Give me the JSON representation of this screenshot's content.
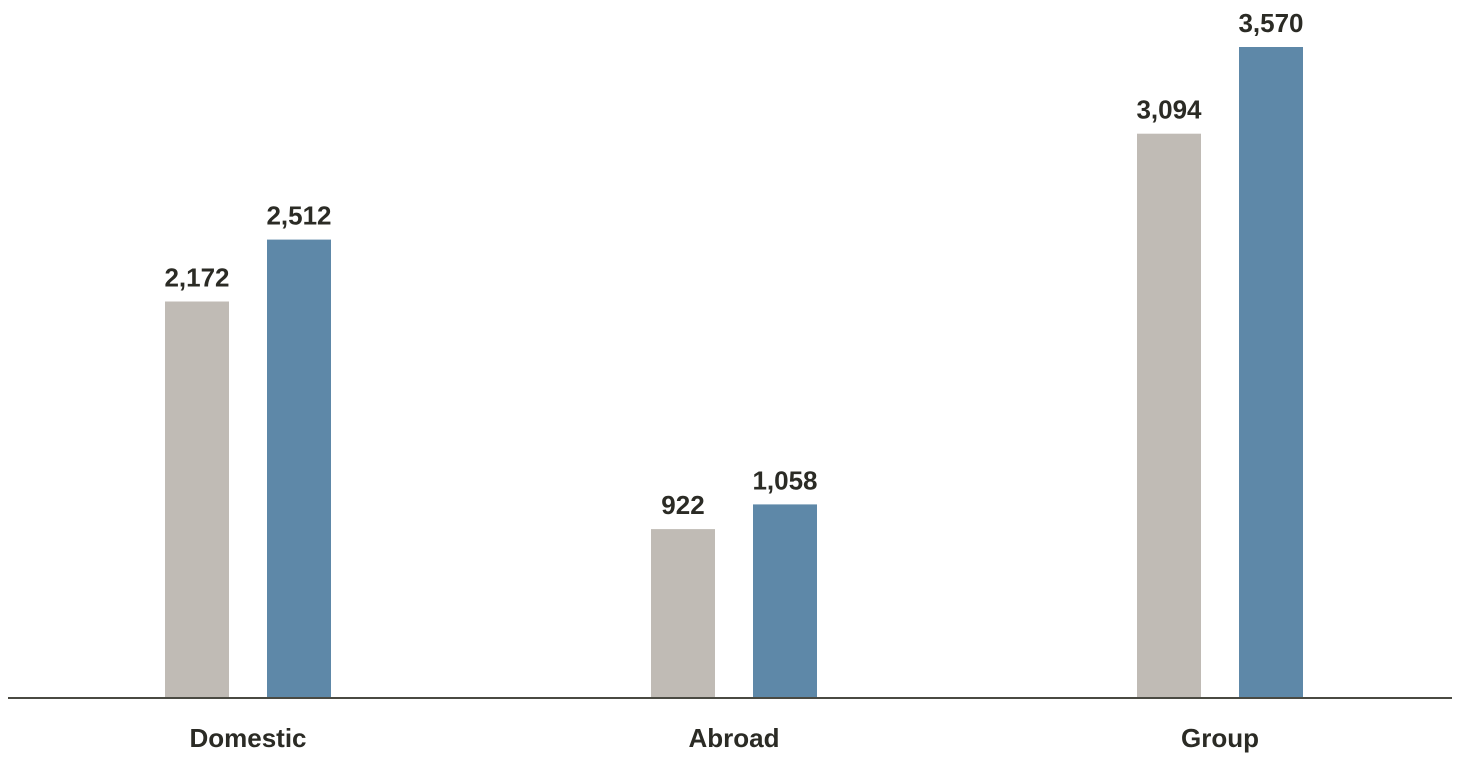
{
  "colors": {
    "series_1": "#c0bbb5",
    "series_2": "#5e88a8",
    "axis": "#4a4a42",
    "text": "#2b2b25"
  },
  "chart_data": {
    "type": "bar",
    "categories": [
      "Domestic",
      "Abroad",
      "Group"
    ],
    "series": [
      {
        "values": [
          2172,
          922,
          3094
        ],
        "value_labels": [
          "2,172",
          "922",
          "3,094"
        ]
      },
      {
        "values": [
          2512,
          1058,
          3570
        ],
        "value_labels": [
          "2,512",
          "1,058",
          "3,570"
        ]
      }
    ],
    "title": "",
    "xlabel": "",
    "ylabel": "",
    "ylim": [
      0,
      3570
    ],
    "grid": false,
    "legend": "none",
    "data_labels": "above-bars"
  }
}
